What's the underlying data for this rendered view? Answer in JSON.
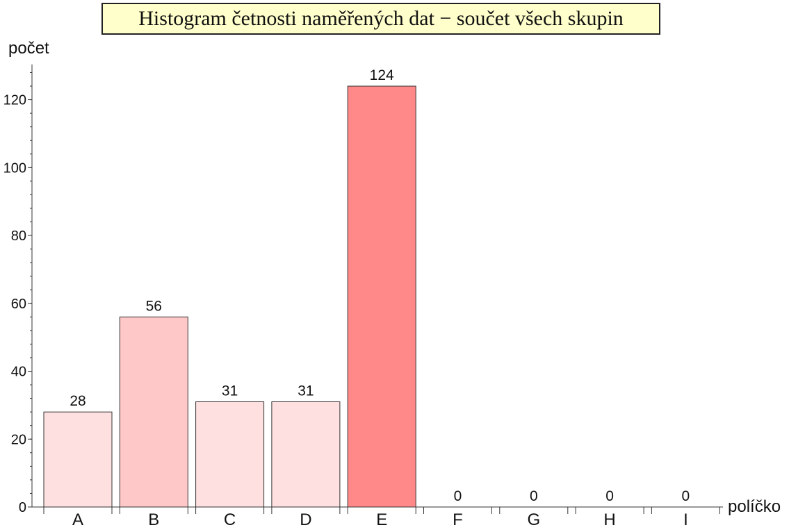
{
  "chart_data": {
    "type": "bar",
    "title": "Histogram četnosti naměřených dat − součet všech skupin",
    "xlabel": "políčko",
    "ylabel": "počet",
    "categories": [
      "A",
      "B",
      "C",
      "D",
      "E",
      "F",
      "G",
      "H",
      "I"
    ],
    "values": [
      28,
      56,
      31,
      31,
      124,
      0,
      0,
      0,
      0
    ],
    "ylim": [
      0,
      130
    ],
    "yticks": [
      0,
      20,
      40,
      60,
      80,
      100,
      120
    ],
    "grid": false,
    "title_background": "#ffffcc",
    "bar_colors": [
      "#ffe0e0",
      "#ffc8c8",
      "#ffe0e0",
      "#ffe0e0",
      "#ff8888",
      "#ffe0e0",
      "#ffe0e0",
      "#ffe0e0",
      "#ffe0e0"
    ],
    "bar_edge_color": "#333333"
  }
}
